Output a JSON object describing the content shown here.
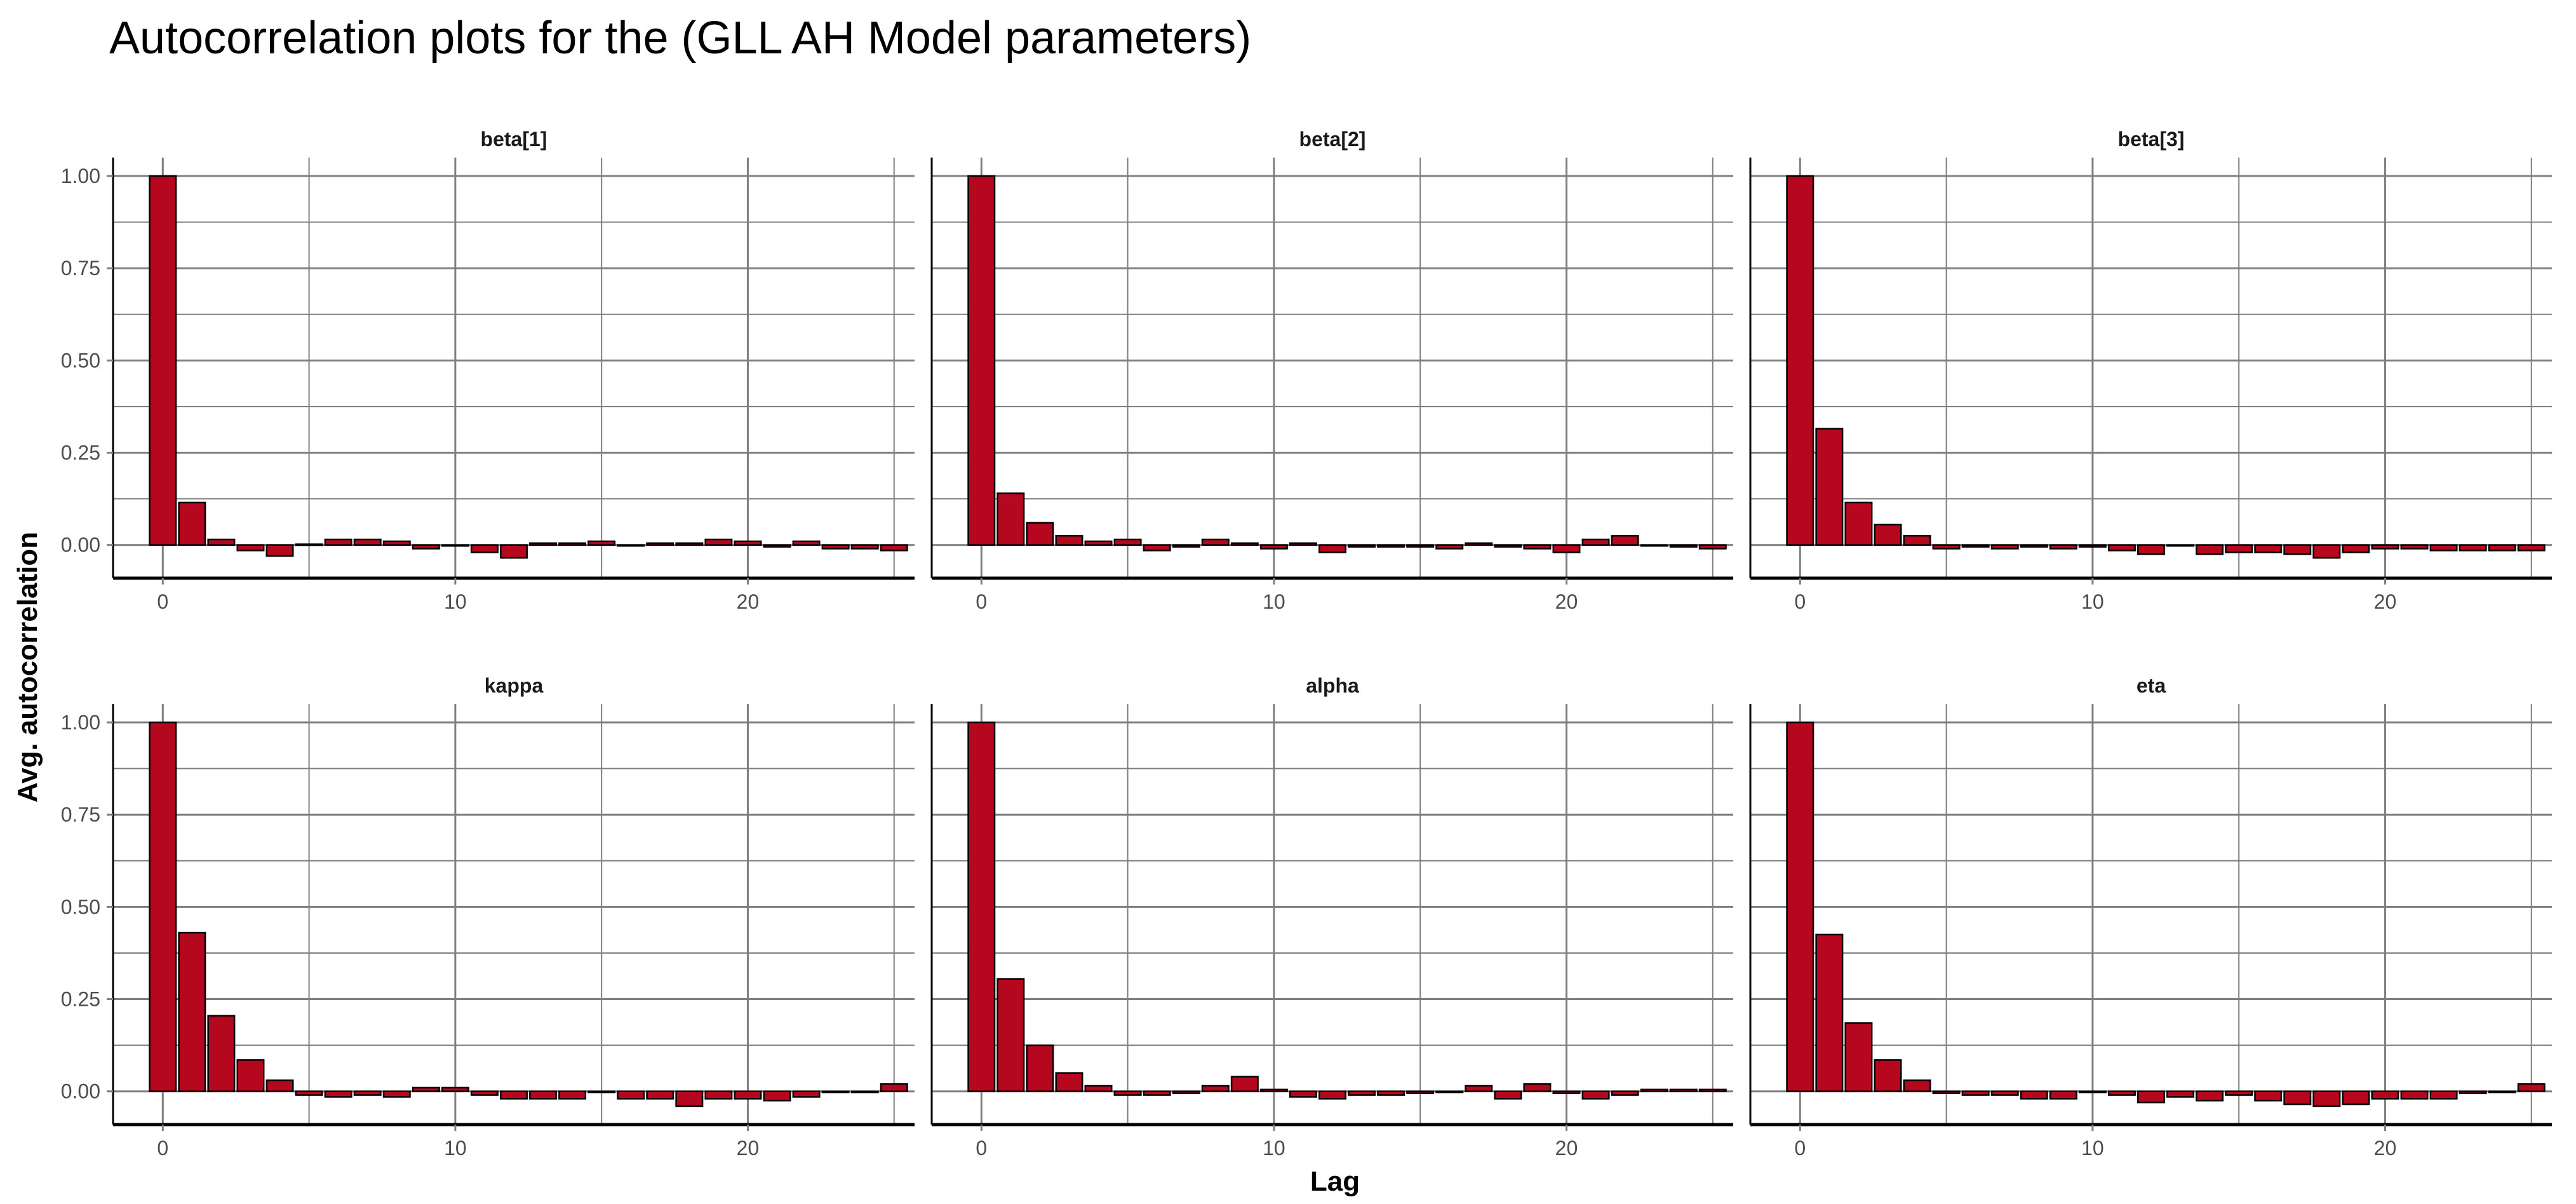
{
  "chart_data": {
    "type": "bar",
    "title": "Autocorrelation plots for the (GLL AH Model parameters)",
    "xlabel": "Lag",
    "ylabel": "Avg.  autocorrelation",
    "xlim": [
      -1.7,
      25.7
    ],
    "ylim": [
      -0.09,
      1.05
    ],
    "x_ticks": [
      0,
      10,
      20
    ],
    "x_tick_labels": [
      "0",
      "10",
      "20"
    ],
    "y_ticks": [
      0,
      0.25,
      0.5,
      0.75,
      1
    ],
    "y_tick_labels": [
      "0.00",
      "0.25",
      "0.50",
      "0.75",
      "1.00"
    ],
    "grid": true,
    "colors": {
      "bar_fill": "#b5081f",
      "bar_stroke": "#000000",
      "grid": "#7f7f7f",
      "axis": "#000000"
    },
    "lags": [
      0,
      1,
      2,
      3,
      4,
      5,
      6,
      7,
      8,
      9,
      10,
      11,
      12,
      13,
      14,
      15,
      16,
      17,
      18,
      19,
      20,
      21,
      22,
      23,
      24,
      25
    ],
    "panels": [
      {
        "name": "beta[1]",
        "values": [
          1.0,
          0.115,
          0.015,
          -0.015,
          -0.03,
          0.002,
          0.015,
          0.015,
          0.01,
          -0.01,
          0.0,
          -0.02,
          -0.035,
          0.005,
          0.005,
          0.01,
          0.0,
          0.005,
          0.005,
          0.015,
          0.01,
          -0.005,
          0.01,
          -0.01,
          -0.01,
          -0.015
        ]
      },
      {
        "name": "beta[2]",
        "values": [
          1.0,
          0.14,
          0.06,
          0.025,
          0.01,
          0.015,
          -0.015,
          -0.005,
          0.015,
          0.005,
          -0.01,
          0.005,
          -0.02,
          -0.005,
          -0.005,
          -0.005,
          -0.01,
          0.005,
          -0.005,
          -0.01,
          -0.02,
          0.015,
          0.025,
          0.0,
          -0.005,
          -0.01
        ]
      },
      {
        "name": "beta[3]",
        "values": [
          1.0,
          0.315,
          0.115,
          0.055,
          0.025,
          -0.01,
          -0.005,
          -0.01,
          -0.005,
          -0.01,
          -0.005,
          -0.015,
          -0.025,
          0.0,
          -0.025,
          -0.02,
          -0.02,
          -0.025,
          -0.035,
          -0.02,
          -0.01,
          -0.01,
          -0.015,
          -0.015,
          -0.015,
          -0.015
        ]
      },
      {
        "name": "kappa",
        "values": [
          1.0,
          0.43,
          0.205,
          0.085,
          0.03,
          -0.01,
          -0.015,
          -0.01,
          -0.015,
          0.01,
          0.01,
          -0.01,
          -0.02,
          -0.02,
          -0.02,
          0.0,
          -0.02,
          -0.02,
          -0.04,
          -0.02,
          -0.02,
          -0.025,
          -0.015,
          0.0,
          0.0,
          0.02
        ]
      },
      {
        "name": "alpha",
        "values": [
          1.0,
          0.305,
          0.125,
          0.05,
          0.015,
          -0.01,
          -0.01,
          -0.005,
          0.015,
          0.04,
          0.005,
          -0.015,
          -0.02,
          -0.01,
          -0.01,
          -0.005,
          0.0,
          0.015,
          -0.02,
          0.02,
          -0.005,
          -0.02,
          -0.01,
          0.005,
          0.005,
          0.005
        ]
      },
      {
        "name": "eta",
        "values": [
          1.0,
          0.425,
          0.185,
          0.085,
          0.03,
          -0.005,
          -0.01,
          -0.01,
          -0.02,
          -0.02,
          0.0,
          -0.01,
          -0.03,
          -0.015,
          -0.025,
          -0.01,
          -0.025,
          -0.035,
          -0.04,
          -0.035,
          -0.02,
          -0.02,
          -0.02,
          -0.005,
          0.0,
          0.02
        ]
      }
    ]
  }
}
